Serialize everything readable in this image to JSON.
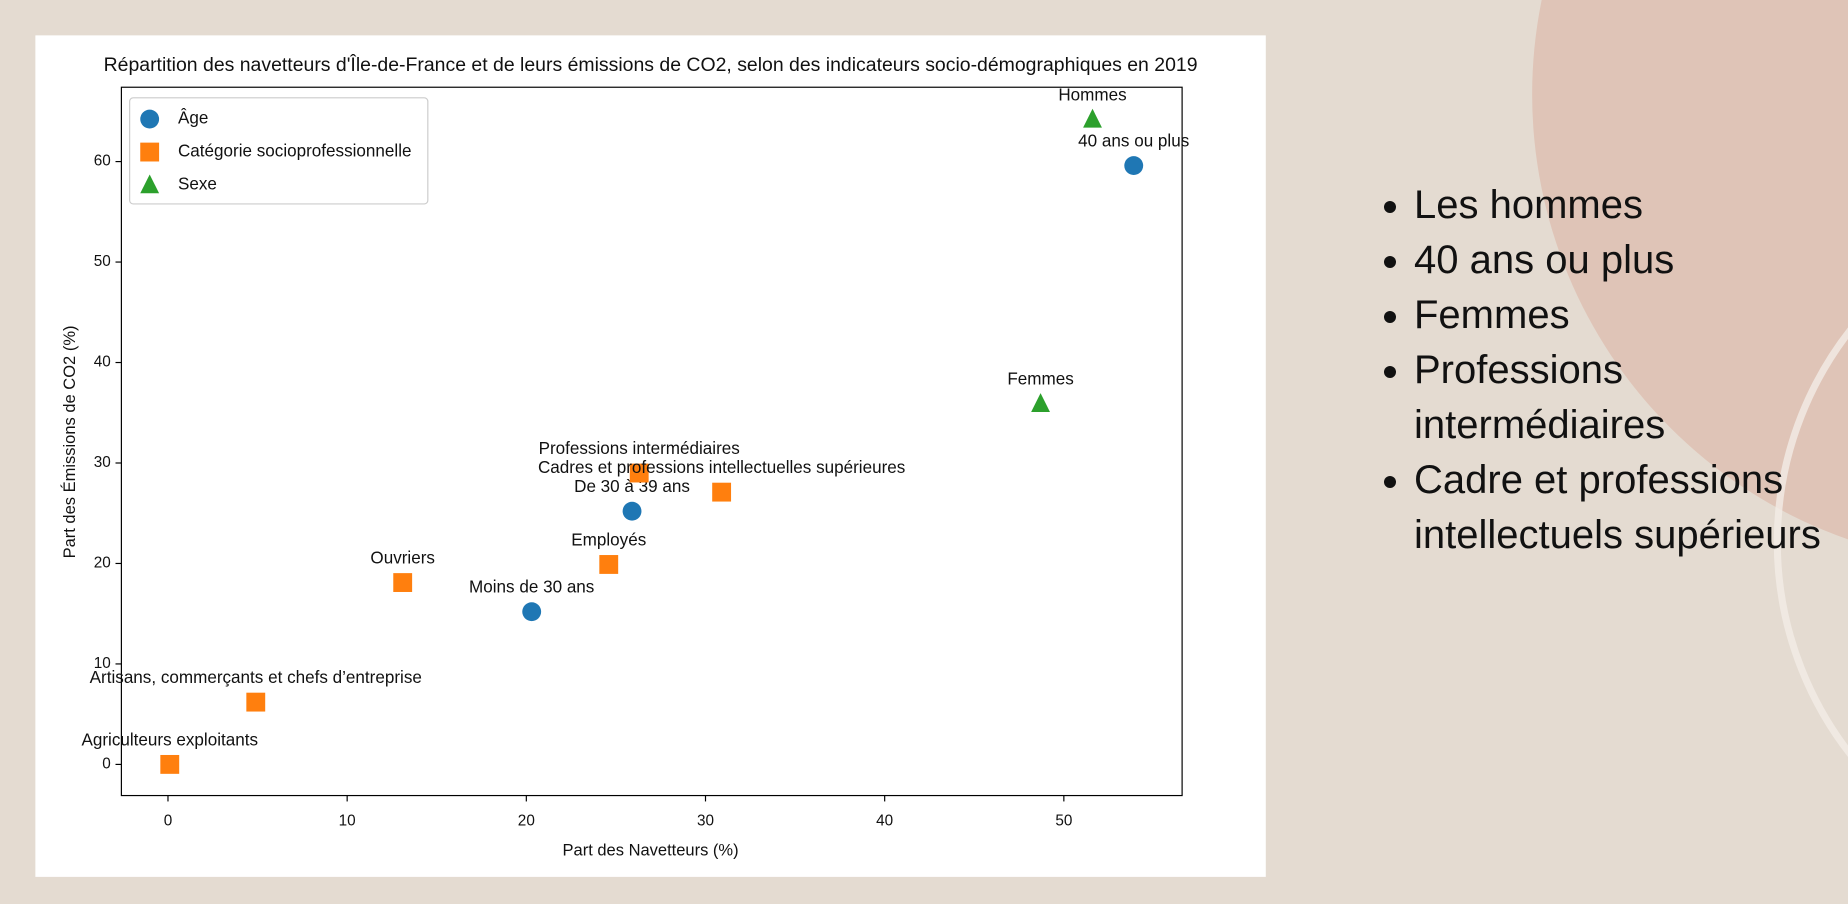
{
  "chart_data": {
    "type": "scatter",
    "title": "Répartition des navetteurs d'Île-de-France et de leurs émissions de CO2, selon des indicateurs socio-démographiques en 2019",
    "xlabel": "Part des Navetteurs (%)",
    "ylabel": "Part des Émissions de CO2 (%)",
    "xlim": [
      -2.6,
      56.6
    ],
    "ylim": [
      -3.1,
      67.4
    ],
    "xticks": [
      0,
      10,
      20,
      30,
      40,
      50
    ],
    "yticks": [
      0,
      10,
      20,
      30,
      40,
      50,
      60
    ],
    "legend": "upper left",
    "series": [
      {
        "name": "Âge",
        "color": "#1f77b4",
        "marker": "o",
        "x": [
          20.3,
          25.9,
          53.9
        ],
        "values": [
          15.2,
          25.2,
          59.6
        ],
        "labels": [
          "Moins de 30 ans",
          "De 30 à 39 ans",
          "40 ans ou plus"
        ]
      },
      {
        "name": "Catégorie socioprofessionnelle",
        "color": "#ff7f0e",
        "marker": "s",
        "x": [
          0.1,
          4.9,
          13.1,
          24.6,
          26.3,
          30.9
        ],
        "values": [
          0.0,
          6.2,
          18.1,
          19.9,
          29.0,
          27.1
        ],
        "labels": [
          "Agriculteurs exploitants",
          "Artisans, commerçants et chefs d’entreprise",
          "Ouvriers",
          "Employés",
          "Professions intermédiaires",
          "Cadres et professions intellectuelles supérieures"
        ]
      },
      {
        "name": "Sexe",
        "color": "#2ca02c",
        "marker": "^",
        "x": [
          51.6,
          48.7
        ],
        "values": [
          64.2,
          35.9
        ],
        "labels": [
          "Hommes",
          "Femmes"
        ]
      }
    ]
  },
  "bullets": [
    "Les hommes",
    "40 ans ou plus",
    "Femmes",
    "Professions intermédiaires",
    "Cadre et professions intellectuels supérieurs"
  ]
}
